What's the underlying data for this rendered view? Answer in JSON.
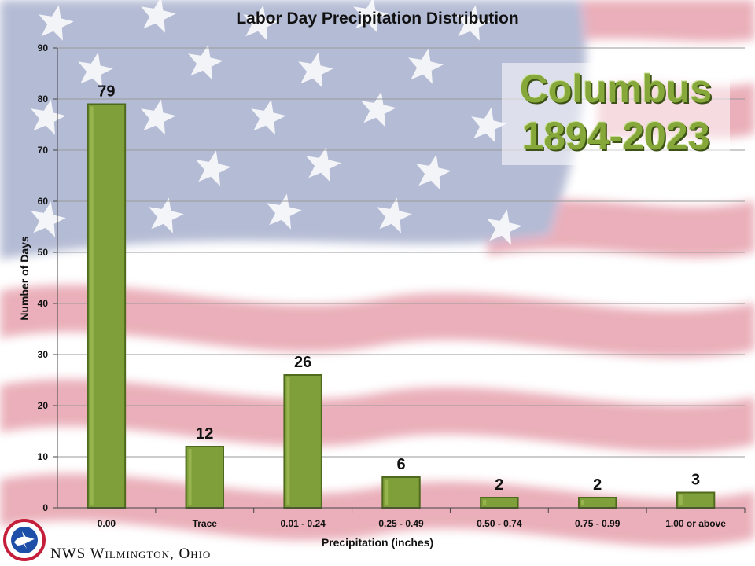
{
  "chart_data": {
    "type": "bar",
    "title": "Labor Day Precipitation Distribution",
    "xlabel": "Precipitation (inches)",
    "ylabel": "Number of Days",
    "categories": [
      "0.00",
      "Trace",
      "0.01 - 0.24",
      "0.25 - 0.49",
      "0.50 - 0.74",
      "0.75 - 0.99",
      "1.00 or above"
    ],
    "values": [
      79,
      12,
      26,
      6,
      2,
      2,
      3
    ],
    "data_labels": [
      "79",
      "12",
      "26",
      "6",
      "2",
      "2",
      "3"
    ],
    "ylim": [
      0,
      90
    ],
    "yticks": [
      "0",
      "10",
      "20",
      "30",
      "40",
      "50",
      "60",
      "70",
      "80",
      "90"
    ],
    "grid": true,
    "bar_color": "#7f9f3a",
    "bar_edge_color": "#4f6a1d"
  },
  "station": {
    "name": "Columbus",
    "years": "1894-2023"
  },
  "footer": {
    "text": "NWS Wilmington, Ohio",
    "logo_icon": "nws-logo-icon"
  },
  "colors": {
    "station_text": "#86a83a",
    "flag_blue": "#2b3f86",
    "flag_red": "#c41e3a"
  }
}
